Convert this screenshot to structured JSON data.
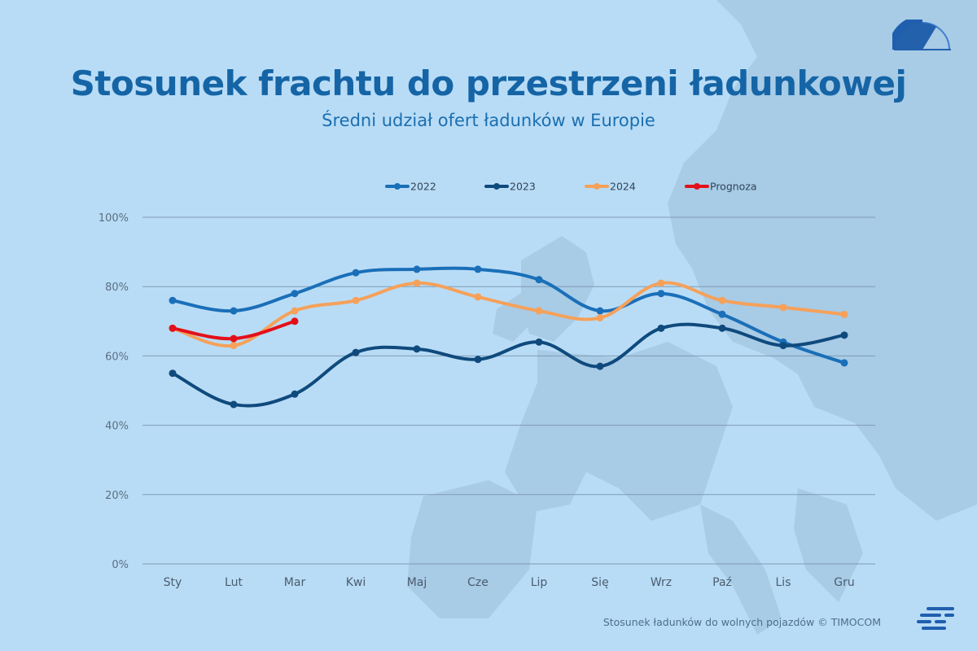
{
  "header": {
    "title": "Stosunek frachtu do przestrzeni ładunkowej",
    "subtitle": "Średni udział ofert ładunków w Europie"
  },
  "footer": {
    "source": "Stosunek ładunków do wolnych pojazdów © TIMOCOM"
  },
  "icons": {
    "top_right": "gauge-icon",
    "bottom_right": "timocom-logo-icon"
  },
  "colors": {
    "background": "#b9dcf6",
    "map": "#a6c9e3",
    "gridline": "#7f9bb4",
    "title": "#1565a6"
  },
  "chart_data": {
    "type": "line",
    "title": "Stosunek frachtu do przestrzeni ładunkowej",
    "subtitle": "Średni udział ofert ładunków w Europie",
    "categories": [
      "Sty",
      "Lut",
      "Mar",
      "Kwi",
      "Maj",
      "Cze",
      "Lip",
      "Się",
      "Wrz",
      "Paź",
      "Lis",
      "Gru"
    ],
    "ylim": [
      0,
      100
    ],
    "yticks": [
      "0%",
      "20%",
      "40%",
      "60%",
      "80%",
      "100%"
    ],
    "grid": true,
    "legend_position": "top",
    "series": [
      {
        "name": "2022",
        "color": "#1a6fb8",
        "values": [
          76,
          73,
          78,
          84,
          85,
          85,
          82,
          73,
          78,
          72,
          64,
          58
        ]
      },
      {
        "name": "2023",
        "color": "#0f4a7d",
        "values": [
          55,
          46,
          49,
          61,
          62,
          59,
          64,
          57,
          68,
          68,
          63,
          66
        ]
      },
      {
        "name": "2024",
        "color": "#f5a15a",
        "values": [
          68,
          63,
          73,
          76,
          81,
          77,
          73,
          71,
          81,
          76,
          74,
          72
        ]
      },
      {
        "name": "Prognoza",
        "color": "#e3101a",
        "values": [
          68,
          65,
          70,
          null,
          null,
          null,
          null,
          null,
          null,
          null,
          null,
          null
        ]
      }
    ]
  }
}
